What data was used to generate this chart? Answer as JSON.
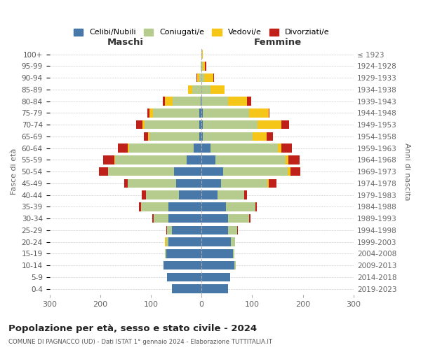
{
  "age_groups": [
    "0-4",
    "5-9",
    "10-14",
    "15-19",
    "20-24",
    "25-29",
    "30-34",
    "35-39",
    "40-44",
    "45-49",
    "50-54",
    "55-59",
    "60-64",
    "65-69",
    "70-74",
    "75-79",
    "80-84",
    "85-89",
    "90-94",
    "95-99",
    "100+"
  ],
  "birth_years": [
    "2019-2023",
    "2014-2018",
    "2009-2013",
    "2004-2008",
    "1999-2003",
    "1994-1998",
    "1989-1993",
    "1984-1988",
    "1979-1983",
    "1974-1978",
    "1969-1973",
    "1964-1968",
    "1959-1963",
    "1954-1958",
    "1949-1953",
    "1944-1948",
    "1939-1943",
    "1934-1938",
    "1929-1933",
    "1924-1928",
    "≤ 1923"
  ],
  "colors": {
    "celibi": "#4878a8",
    "coniugati": "#b5cc8e",
    "vedovi": "#f5c518",
    "divorziati": "#c0201a"
  },
  "maschi": {
    "celibi": [
      58,
      68,
      75,
      70,
      65,
      58,
      65,
      65,
      45,
      50,
      55,
      30,
      15,
      5,
      4,
      4,
      2,
      0,
      0,
      0,
      0
    ],
    "coniugati": [
      0,
      0,
      0,
      2,
      5,
      10,
      30,
      55,
      65,
      95,
      130,
      140,
      128,
      98,
      108,
      92,
      55,
      18,
      5,
      2,
      0
    ],
    "vedovi": [
      0,
      0,
      0,
      0,
      2,
      0,
      0,
      0,
      0,
      0,
      0,
      2,
      2,
      3,
      5,
      7,
      15,
      8,
      3,
      0,
      0
    ],
    "divorziati": [
      0,
      0,
      0,
      0,
      0,
      2,
      2,
      3,
      8,
      8,
      18,
      22,
      20,
      8,
      12,
      4,
      4,
      0,
      2,
      0,
      0
    ]
  },
  "femmine": {
    "celibi": [
      52,
      56,
      65,
      62,
      58,
      52,
      52,
      48,
      32,
      38,
      42,
      28,
      18,
      3,
      2,
      2,
      0,
      0,
      0,
      0,
      0
    ],
    "coniugati": [
      0,
      0,
      2,
      3,
      8,
      18,
      42,
      58,
      52,
      92,
      128,
      138,
      132,
      98,
      108,
      92,
      52,
      18,
      5,
      2,
      0
    ],
    "vedovi": [
      0,
      0,
      0,
      0,
      0,
      0,
      0,
      0,
      0,
      3,
      5,
      5,
      8,
      28,
      48,
      38,
      38,
      28,
      18,
      5,
      2
    ],
    "divorziati": [
      0,
      0,
      0,
      0,
      0,
      2,
      3,
      3,
      5,
      15,
      20,
      22,
      20,
      12,
      15,
      2,
      8,
      0,
      2,
      2,
      0
    ]
  },
  "xlim": 300,
  "title": "Popolazione per età, sesso e stato civile - 2024",
  "subtitle": "COMUNE DI PAGNACCO (UD) - Dati ISTAT 1° gennaio 2024 - Elaborazione TUTTITALIA.IT",
  "ylabel_left": "Fasce di età",
  "ylabel_right": "Anni di nascita",
  "label_maschi": "Maschi",
  "label_femmine": "Femmine",
  "legend_labels": [
    "Celibi/Nubili",
    "Coniugati/e",
    "Vedovi/e",
    "Divorziati/e"
  ],
  "background_color": "#ffffff",
  "grid_color": "#cccccc"
}
